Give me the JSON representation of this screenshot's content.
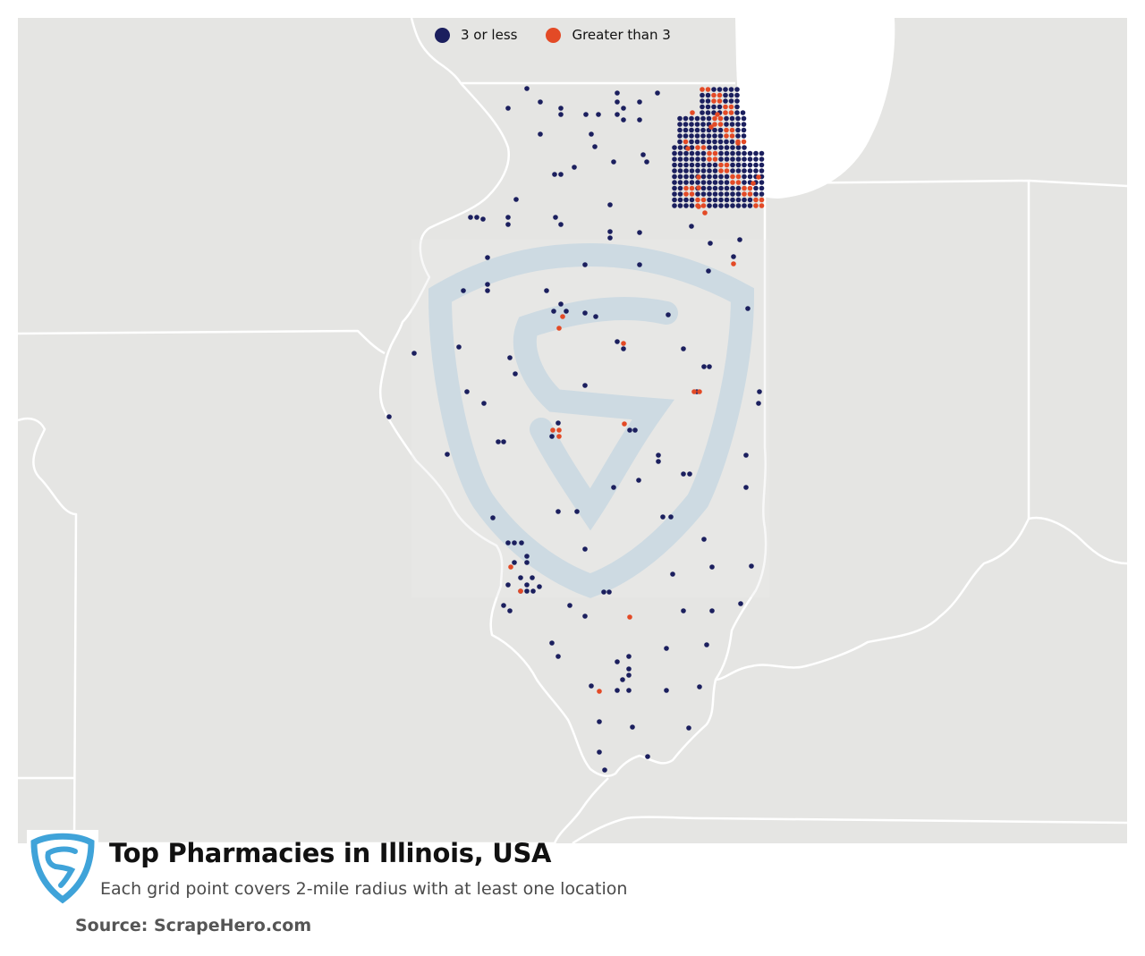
{
  "title": "Top Pharmacies in Illinois, USA",
  "subtitle": "Each grid point covers 2-mile radius with at least one location",
  "source": "Source: ScrapeHero.com",
  "legend": [
    {
      "label": "3 or less",
      "color": "#1b1f5e"
    },
    {
      "label": "Greater than 3",
      "color": "#e34a26"
    }
  ],
  "colors": {
    "land": "#e5e5e3",
    "water": "#ffffff",
    "border": "#ffffff",
    "watermark": "#c9d9e2",
    "logo": "#3fa3d9"
  },
  "icons": {
    "logo": "scrapehero-shield-icon",
    "watermark": "scrapehero-shield-watermark"
  }
}
